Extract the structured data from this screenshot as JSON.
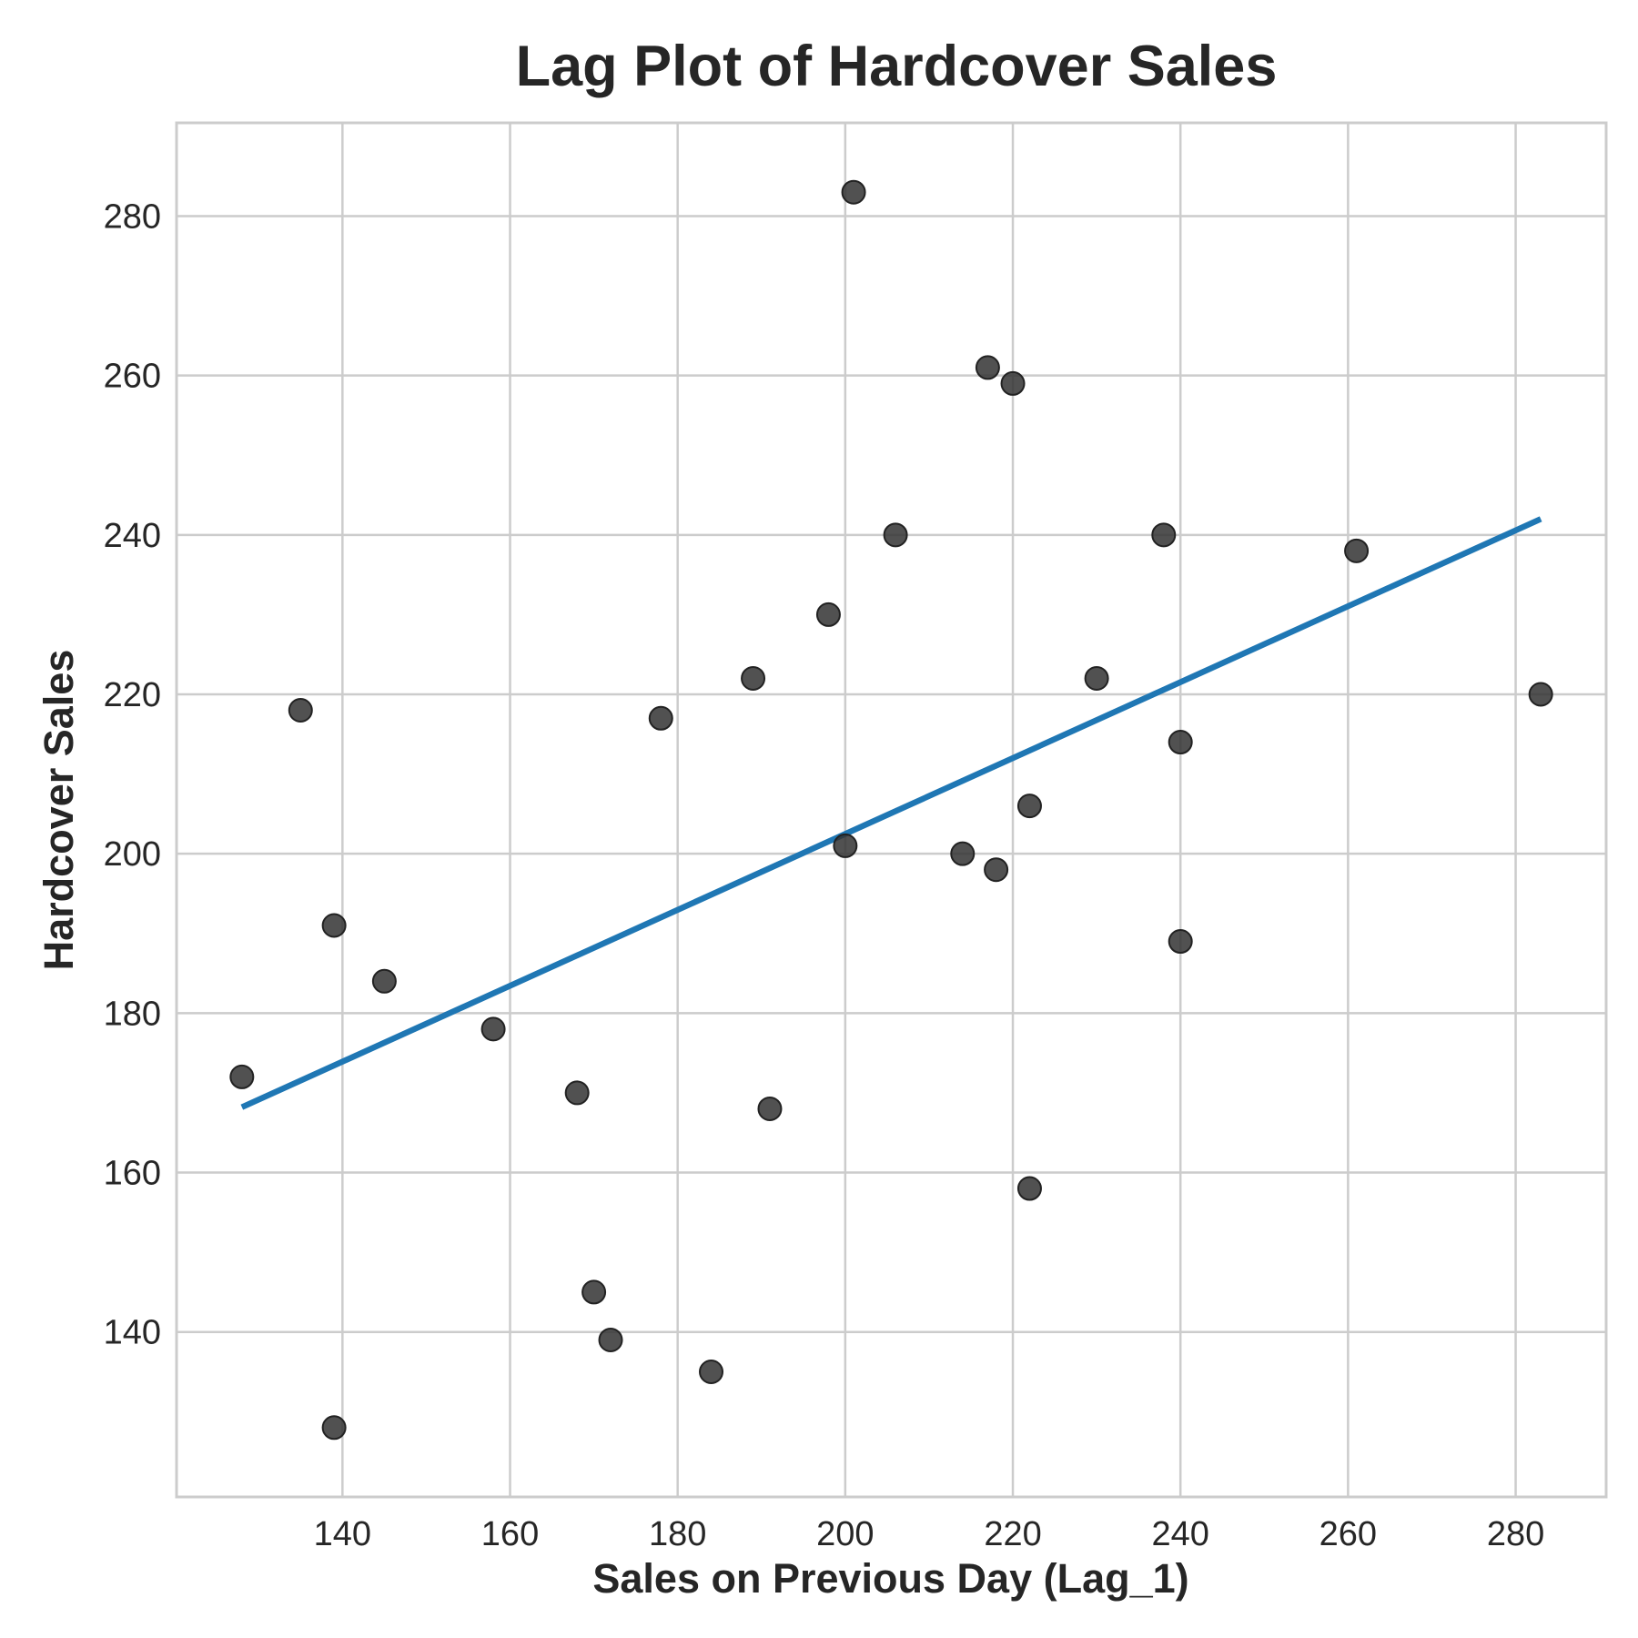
{
  "chart_data": {
    "type": "scatter",
    "title": "Lag Plot of Hardcover Sales",
    "xlabel": "Sales on Previous Day (Lag_1)",
    "ylabel": "Hardcover Sales",
    "xlim": [
      120.2,
      290.8
    ],
    "ylim": [
      119.3,
      291.7
    ],
    "xticks": [
      "140",
      "160",
      "180",
      "200",
      "220",
      "240",
      "260",
      "280"
    ],
    "yticks": [
      "140",
      "160",
      "180",
      "200",
      "220",
      "240",
      "260",
      "280"
    ],
    "grid": true,
    "colors": {
      "points": "#333333",
      "fit_line": "#1f77b4",
      "grid": "#cccccc"
    },
    "points": [
      {
        "x": 128,
        "y": 172
      },
      {
        "x": 135,
        "y": 218
      },
      {
        "x": 139,
        "y": 191
      },
      {
        "x": 139,
        "y": 128
      },
      {
        "x": 145,
        "y": 184
      },
      {
        "x": 158,
        "y": 178
      },
      {
        "x": 168,
        "y": 170
      },
      {
        "x": 170,
        "y": 145
      },
      {
        "x": 172,
        "y": 139
      },
      {
        "x": 178,
        "y": 217
      },
      {
        "x": 184,
        "y": 135
      },
      {
        "x": 189,
        "y": 222
      },
      {
        "x": 191,
        "y": 168
      },
      {
        "x": 198,
        "y": 230
      },
      {
        "x": 200,
        "y": 201
      },
      {
        "x": 201,
        "y": 283
      },
      {
        "x": 206,
        "y": 240
      },
      {
        "x": 214,
        "y": 200
      },
      {
        "x": 217,
        "y": 261
      },
      {
        "x": 218,
        "y": 198
      },
      {
        "x": 220,
        "y": 259
      },
      {
        "x": 222,
        "y": 206
      },
      {
        "x": 222,
        "y": 158
      },
      {
        "x": 230,
        "y": 222
      },
      {
        "x": 238,
        "y": 240
      },
      {
        "x": 240,
        "y": 214
      },
      {
        "x": 240,
        "y": 189
      },
      {
        "x": 261,
        "y": 238
      },
      {
        "x": 283,
        "y": 220
      }
    ],
    "fit_line": {
      "x": [
        128,
        283
      ],
      "y": [
        168.2,
        242.0
      ]
    }
  }
}
